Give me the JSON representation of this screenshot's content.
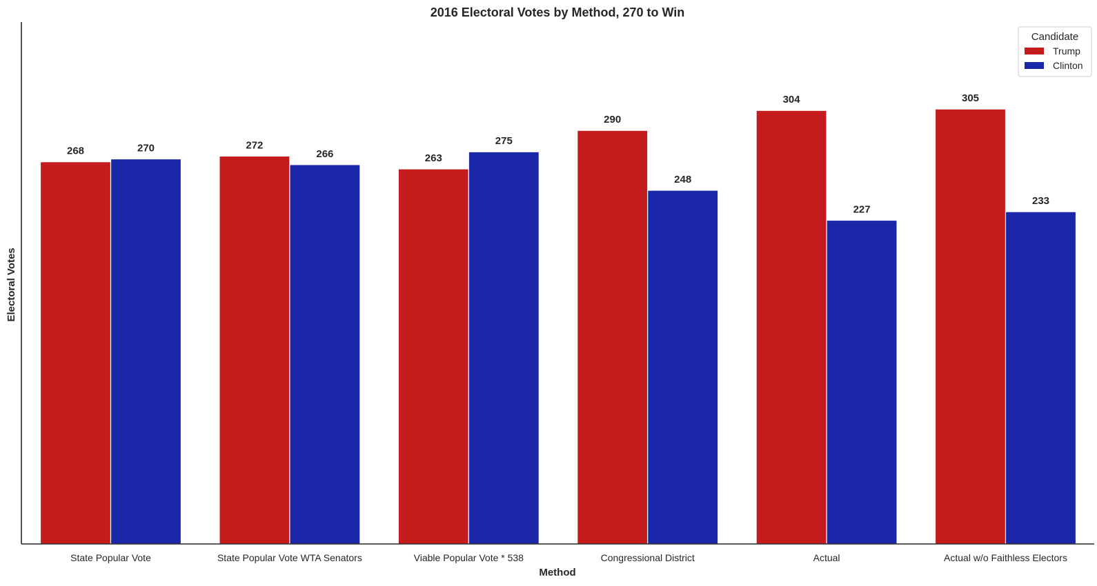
{
  "chart_data": {
    "type": "bar",
    "title": "2016 Electoral Votes by Method, 270 to Win",
    "xlabel": "Method",
    "ylabel": "Electoral Votes",
    "categories": [
      "State Popular Vote",
      "State Popular Vote WTA Senators",
      "Viable Popular Vote * 538",
      "Congressional District",
      "Actual",
      "Actual w/o Faithless Electors"
    ],
    "series": [
      {
        "name": "Trump",
        "color": "#c41c1c",
        "values": [
          268,
          272,
          263,
          290,
          304,
          305
        ]
      },
      {
        "name": "Clinton",
        "color": "#1a27a8",
        "values": [
          270,
          266,
          275,
          248,
          227,
          233
        ]
      }
    ],
    "ylim": [
      0,
      366
    ],
    "legend": {
      "title": "Candidate",
      "placement": "top-right"
    },
    "grid": false,
    "y_ticks_shown": false
  }
}
